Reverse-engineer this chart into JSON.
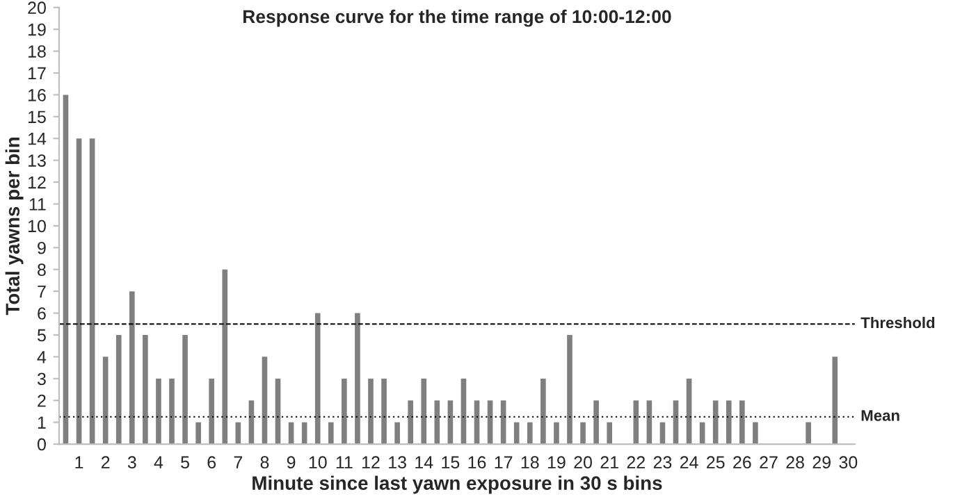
{
  "chart_data": {
    "type": "bar",
    "title": "Response curve for the time range of 10:00-12:00",
    "xlabel": "Minute since last yawn exposure in 30 s bins",
    "ylabel": "Total yawns per bin",
    "categories": [
      null,
      "1",
      null,
      "2",
      null,
      "3",
      null,
      "4",
      null,
      "5",
      null,
      "6",
      null,
      "7",
      null,
      "8",
      null,
      "9",
      null,
      "10",
      null,
      "11",
      null,
      "12",
      null,
      "13",
      null,
      "14",
      null,
      "15",
      null,
      "16",
      null,
      "17",
      null,
      "18",
      null,
      "19",
      null,
      "20",
      null,
      "21",
      null,
      "22",
      null,
      "23",
      null,
      "24",
      null,
      "25",
      null,
      "26",
      null,
      "27",
      null,
      "28",
      null,
      "29",
      null,
      "30"
    ],
    "values": [
      16,
      14,
      14,
      4,
      5,
      7,
      5,
      3,
      3,
      5,
      1,
      3,
      8,
      1,
      2,
      4,
      3,
      1,
      1,
      6,
      1,
      3,
      6,
      3,
      3,
      1,
      2,
      3,
      2,
      2,
      3,
      2,
      2,
      2,
      1,
      1,
      3,
      1,
      5,
      1,
      2,
      1,
      0,
      2,
      2,
      1,
      2,
      3,
      1,
      2,
      2,
      2,
      1,
      0,
      0,
      0,
      1,
      0,
      4,
      0
    ],
    "color": "#7f7f7f",
    "ylim": [
      0,
      20
    ],
    "yticks": [
      0,
      1,
      2,
      3,
      4,
      5,
      6,
      7,
      8,
      9,
      10,
      11,
      12,
      13,
      14,
      15,
      16,
      17,
      18,
      19,
      20
    ],
    "grid": false,
    "ref_lines": [
      {
        "axis": "y",
        "value": 5.5,
        "label": "Threshold",
        "line_style": "dashed",
        "color": "#000000"
      },
      {
        "axis": "y",
        "value": 1.25,
        "label": "Mean",
        "line_style": "dotted",
        "color": "#000000"
      }
    ]
  }
}
